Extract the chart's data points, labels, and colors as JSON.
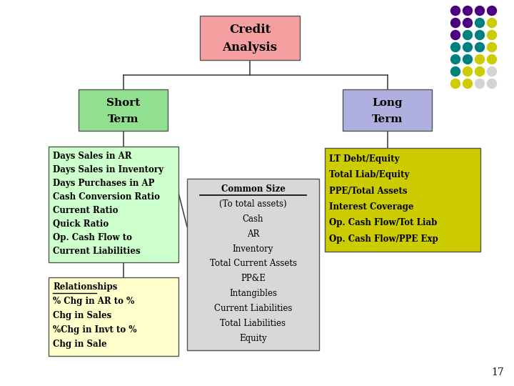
{
  "slide_bg": "#ffffff",
  "title": "Credit\nAnalysis",
  "title_box_color": "#f4a0a0",
  "short_term_label": "Short\nTerm",
  "short_term_color": "#90e090",
  "long_term_label": "Long\nTerm",
  "long_term_color": "#b0b0e0",
  "short_detail_color": "#ccffcc",
  "short_detail_text": "Days Sales in AR\nDays Sales in Inventory\nDays Purchases in AP\nCash Conversion Ratio\nCurrent Ratio\nQuick Ratio\nOp. Cash Flow to\nCurrent Liabilities",
  "relationships_color": "#ffffcc",
  "relationships_text": "Relationships\n% Chg in AR to %\nChg in Sales\n%Chg in Invt to %\nChg in Sale",
  "common_size_color": "#d8d8d8",
  "common_size_text": "Common Size\n(To total assets)\nCash\nAR\nInventory\nTotal Current Assets\nPP&E\nIntangibles\nCurrent Liabilities\nTotal Liabilities\nEquity",
  "long_detail_color": "#cccc00",
  "long_detail_text": "LT Debt/Equity\nTotal Liab/Equity\nPPE/Total Assets\nInterest Coverage\nOp. Cash Flow/Tot Liab\nOp. Cash Flow/PPE Exp",
  "page_number": "17",
  "border_color": "#555555",
  "line_color": "#444444",
  "dot_colors": [
    [
      "#4b0082",
      "#4b0082",
      "#4b0082",
      "#4b0082"
    ],
    [
      "#4b0082",
      "#4b0082",
      "#008080",
      "#cccc00"
    ],
    [
      "#4b0082",
      "#008080",
      "#008080",
      "#cccc00"
    ],
    [
      "#008080",
      "#008080",
      "#008080",
      "#cccc00"
    ],
    [
      "#008080",
      "#008080",
      "#cccc00",
      "#cccc00"
    ],
    [
      "#008080",
      "#cccc00",
      "#cccc00",
      "#d3d3d3"
    ],
    [
      "#cccc00",
      "#cccc00",
      "#d3d3d3",
      "#d3d3d3"
    ]
  ]
}
